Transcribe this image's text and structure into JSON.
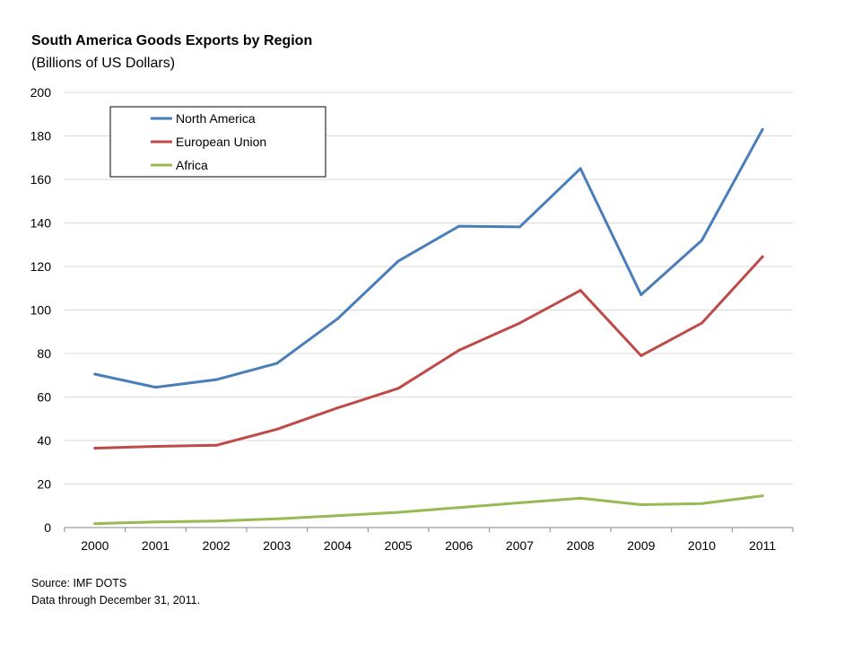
{
  "chart_data": {
    "type": "line",
    "title": "South America Goods Exports by Region",
    "subtitle": "(Billions of US Dollars)",
    "xlabel": "",
    "ylabel": "",
    "categories": [
      "2000",
      "2001",
      "2002",
      "2003",
      "2004",
      "2005",
      "2006",
      "2007",
      "2008",
      "2009",
      "2010",
      "2011"
    ],
    "y_ticks": [
      "0",
      "20",
      "40",
      "60",
      "80",
      "100",
      "120",
      "140",
      "160",
      "180",
      "200"
    ],
    "ylim": [
      0,
      200
    ],
    "grid": "horizontal",
    "legend_position": "top-left",
    "series": [
      {
        "name": "North America",
        "color": "#4a7ebb",
        "values": [
          70.5,
          64.5,
          68,
          75.5,
          96,
          122.5,
          138.5,
          138.2,
          165,
          107,
          132,
          183
        ]
      },
      {
        "name": "European Union",
        "color": "#be4b48",
        "values": [
          36.5,
          37.3,
          37.8,
          45.2,
          55,
          64,
          81.5,
          94,
          109,
          79,
          94,
          124.5
        ]
      },
      {
        "name": "Africa",
        "color": "#98b954",
        "values": [
          1.8,
          2.6,
          3,
          4,
          5.5,
          7,
          9.2,
          11.4,
          13.5,
          10.5,
          11,
          14.6
        ]
      }
    ]
  },
  "footer": {
    "source": "Source: IMF  DOTS",
    "note": "Data through December 31, 2011."
  }
}
